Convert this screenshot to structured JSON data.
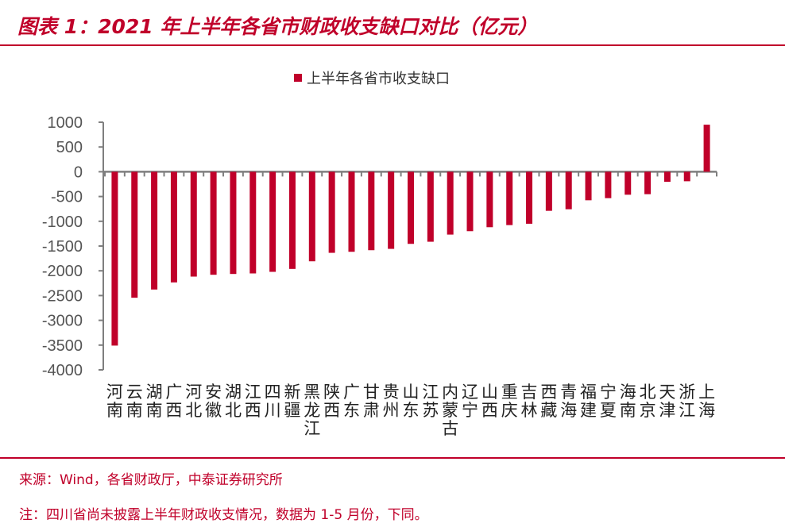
{
  "title": "图表 1：2021 年上半年各省市财政收支缺口对比（亿元）",
  "source": "来源：Wind，各省财政厅，中泰证券研究所",
  "note": "注：四川省尚未披露上半年财政收支情况，数据为 1-5 月份，下同。",
  "colors": {
    "bar": "#c0002a",
    "accent": "#c0002a",
    "axis": "#7f7f7f"
  },
  "chart_data": {
    "type": "bar",
    "title": "",
    "legend": {
      "position": "top",
      "entries": [
        "上半年各省市收支缺口"
      ]
    },
    "series": [
      {
        "name": "上半年各省市收支缺口",
        "values": [
          -3510,
          -2544,
          -2378,
          -2234,
          -2117,
          -2080,
          -2064,
          -2053,
          -2021,
          -1962,
          -1808,
          -1637,
          -1616,
          -1584,
          -1557,
          -1456,
          -1413,
          -1269,
          -1200,
          -1120,
          -1077,
          -1050,
          -789,
          -757,
          -576,
          -533,
          -464,
          -453,
          -203,
          -192,
          950
        ]
      }
    ],
    "categories": [
      "河南",
      "云南",
      "湖南",
      "广西",
      "河北",
      "安徽",
      "湖北",
      "江西",
      "四川",
      "新疆",
      "黑龙江",
      "陕西",
      "广东",
      "甘肃",
      "贵州",
      "山东",
      "江苏",
      "内蒙古",
      "辽宁",
      "山西",
      "重庆",
      "吉林",
      "西藏",
      "青海",
      "福建",
      "宁夏",
      "海南",
      "北京",
      "天津",
      "浙江",
      "上海"
    ],
    "ylim": [
      -4000,
      1000
    ],
    "yticks": [
      "1000",
      "500",
      "0",
      "-500",
      "-1000",
      "-1500",
      "-2000",
      "-2500",
      "-3000",
      "-3500",
      "-4000"
    ],
    "grid": false
  }
}
